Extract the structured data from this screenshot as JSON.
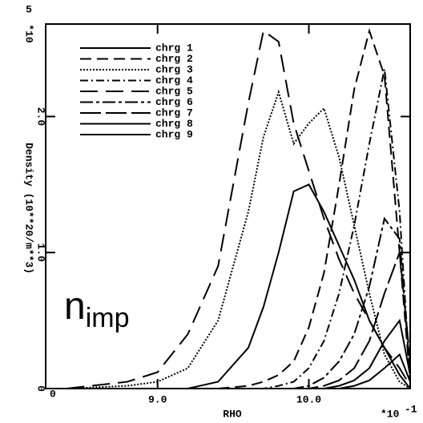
{
  "chart_data": {
    "type": "line",
    "x_label": "RHO",
    "x_multiplier": "*10",
    "x_exponent": "-1",
    "y_label": "Density (10**20/m**3)",
    "y_multiplier": "*10",
    "y_exponent": "5",
    "x_origin_label": "0",
    "annotation": {
      "text": "n",
      "subscript": "imp"
    },
    "xlim": [
      8.26,
      10.67
    ],
    "ylim": [
      0,
      2.68
    ],
    "xticks": [
      {
        "value": 9,
        "label": "9.0"
      },
      {
        "value": 10,
        "label": "10.0"
      }
    ],
    "yticks": [
      0,
      {
        "value": 1,
        "label": "1.0"
      },
      {
        "value": 2,
        "label": "2.0"
      }
    ],
    "x": [
      8.4,
      8.8,
      9.0,
      9.2,
      9.4,
      9.6,
      9.7,
      9.8,
      9.9,
      10.0,
      10.1,
      10.2,
      10.3,
      10.4,
      10.5,
      10.6,
      10.67
    ],
    "series": [
      {
        "name": "chrg 1",
        "color": "#000000",
        "dash": "none",
        "values": [
          0,
          0,
          0,
          0,
          0.05,
          0.3,
          0.6,
          1.0,
          1.45,
          1.5,
          1.3,
          1.05,
          0.8,
          0.5,
          0.3,
          0.1,
          0
        ]
      },
      {
        "name": "chrg 2",
        "color": "#000000",
        "dash": "14 7",
        "values": [
          0,
          0,
          0,
          0,
          0,
          0.02,
          0.05,
          0.1,
          0.2,
          0.45,
          0.85,
          1.5,
          2.2,
          2.63,
          2.3,
          1.0,
          0.05
        ]
      },
      {
        "name": "chrg 3",
        "color": "#000000",
        "dash": "2 2",
        "values": [
          0,
          0.02,
          0.05,
          0.15,
          0.5,
          1.3,
          1.85,
          2.18,
          1.8,
          1.95,
          2.06,
          1.7,
          1.2,
          0.7,
          0.25,
          0.05,
          0
        ]
      },
      {
        "name": "chrg 4",
        "color": "#000000",
        "dash": "10 4 2 4",
        "values": [
          0,
          0,
          0,
          0,
          0,
          0,
          0,
          0.02,
          0.05,
          0.15,
          0.35,
          0.7,
          1.2,
          1.8,
          2.35,
          1.3,
          0.05
        ]
      },
      {
        "name": "chrg 5",
        "color": "#000000",
        "dash": "22 10",
        "values": [
          0,
          0.05,
          0.12,
          0.4,
          0.9,
          2.1,
          2.63,
          2.55,
          1.95,
          1.6,
          1.25,
          0.95,
          0.7,
          0.5,
          0.3,
          0.15,
          0.02
        ]
      },
      {
        "name": "chrg 6",
        "color": "#000000",
        "dash": "16 4 4 4",
        "values": [
          0,
          0,
          0,
          0,
          0,
          0,
          0,
          0,
          0,
          0.02,
          0.08,
          0.2,
          0.4,
          0.75,
          1.25,
          1.1,
          0.1
        ]
      },
      {
        "name": "chrg 7",
        "color": "#000000",
        "dash": "26 6",
        "values": [
          0,
          0,
          0,
          0,
          0,
          0,
          0,
          0,
          0,
          0,
          0.02,
          0.06,
          0.15,
          0.35,
          0.7,
          1.0,
          0.2
        ]
      },
      {
        "name": "chrg 8",
        "color": "#000000",
        "dash": "none",
        "values": [
          0,
          0,
          0,
          0,
          0,
          0,
          0,
          0,
          0,
          0,
          0,
          0.02,
          0.06,
          0.15,
          0.35,
          0.5,
          0.1
        ]
      },
      {
        "name": "chrg 9",
        "color": "#000000",
        "dash": "none",
        "values": [
          0,
          0,
          0,
          0,
          0,
          0,
          0,
          0,
          0,
          0,
          0,
          0,
          0.02,
          0.06,
          0.15,
          0.25,
          0.05
        ]
      }
    ]
  }
}
